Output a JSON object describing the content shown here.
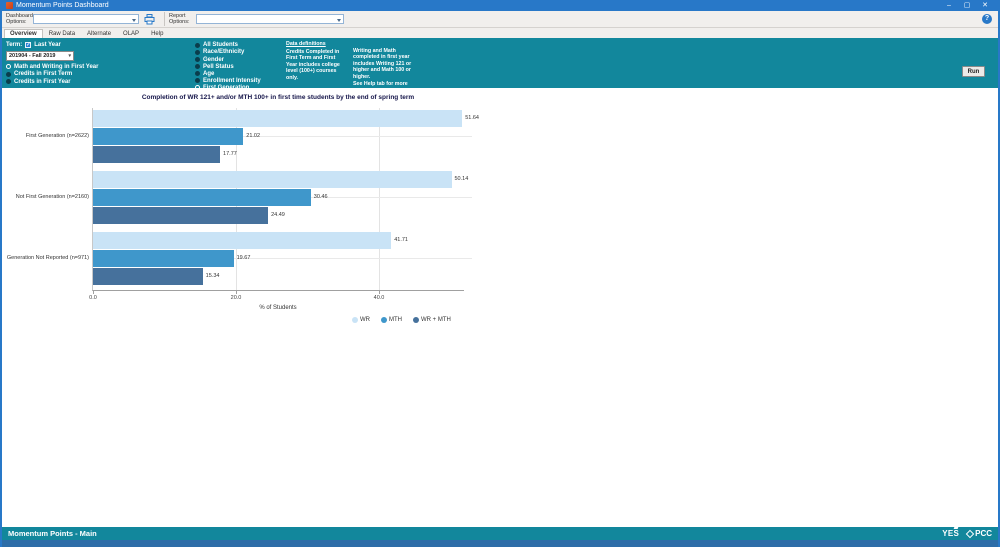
{
  "window": {
    "title": "Momentum Points Dashboard",
    "minimize": "–",
    "maximize": "▢",
    "close": "✕"
  },
  "toolbar": {
    "dashboard_options_label": "Dashboard Options:",
    "report_options_label": "Report Options:",
    "dashboard_options_value": "",
    "report_options_value": "",
    "printer_icon": "printer",
    "help_icon": "?"
  },
  "tabs": [
    {
      "label": "Overview",
      "active": true
    },
    {
      "label": "Raw Data",
      "active": false
    },
    {
      "label": "Alternate",
      "active": false
    },
    {
      "label": "OLAP",
      "active": false
    },
    {
      "label": "Help",
      "active": false
    }
  ],
  "parameters": {
    "term_label": "Term:",
    "last_year_checkbox": {
      "label": "Last Year",
      "checked": true,
      "check_glyph": "✓"
    },
    "term_value": "201904 - Fall 2019",
    "measure_options": [
      {
        "label": "Math and Writing in First Year",
        "selected": true
      },
      {
        "label": "Credits in First Term",
        "selected": false
      },
      {
        "label": "Credits in First Year",
        "selected": false
      }
    ],
    "group_options": [
      {
        "label": "All Students",
        "selected": false
      },
      {
        "label": "Race/Ethnicity",
        "selected": false
      },
      {
        "label": "Gender",
        "selected": false
      },
      {
        "label": "Pell Status",
        "selected": false
      },
      {
        "label": "Age",
        "selected": false
      },
      {
        "label": "Enrollment Intensity",
        "selected": false
      },
      {
        "label": "First Generation",
        "selected": true
      }
    ],
    "data_definitions": {
      "heading": "Data definitions",
      "col1": "Credits Completed in First Term and First Year includes college level (100+) courses only.",
      "col2": "Writing and Math completed in first year includes Writing 121 or higher and Math 100 or higher.",
      "col2_note": "See Help tab for more details"
    },
    "run_button": "Run"
  },
  "chart_data": {
    "type": "bar",
    "orientation": "horizontal",
    "title": "Completion of WR 121+ and/or MTH 100+ in first time students by the end of spring term",
    "categories": [
      "First Generation (n=2622)",
      "Not First Generation (n=2160)",
      "Generation Not Reported (n=971)"
    ],
    "series": [
      {
        "name": "WR",
        "color": "#c9e3f6",
        "values": [
          51.64,
          50.14,
          41.71
        ]
      },
      {
        "name": "MTH",
        "color": "#3f97cb",
        "values": [
          21.02,
          30.46,
          19.67
        ]
      },
      {
        "name": "WR + MTH",
        "color": "#46719c",
        "values": [
          17.77,
          24.49,
          15.34
        ]
      }
    ],
    "xlabel": "% of Students",
    "x_ticks": [
      "0.0",
      "20.0",
      "40.0"
    ],
    "xlim": [
      0,
      52
    ],
    "grid": "vertical",
    "legend_position": "bottom",
    "value_labels": true
  },
  "statusbar": {
    "title": "Momentum Points - Main",
    "logo_yes": "YES",
    "logo_pcc": "PCC"
  },
  "colors": {
    "accent_teal": "#12879c",
    "titlebar_blue": "#2878c8",
    "bottom_strip_blue": "#2d6da8"
  }
}
